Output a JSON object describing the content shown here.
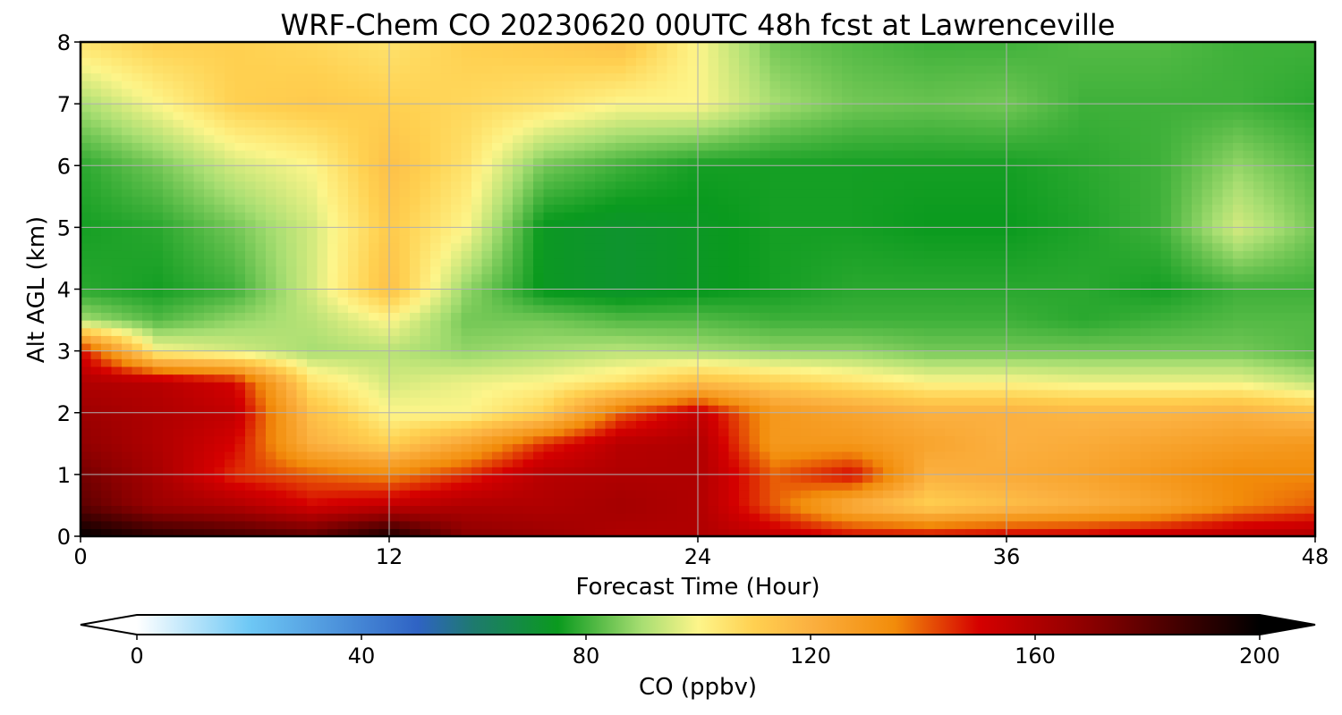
{
  "chart_data": {
    "type": "heatmap",
    "title": "WRF-Chem CO  20230620 00UTC 48h fcst at Lawrenceville",
    "xlabel": "Forecast Time (Hour)",
    "ylabel": "Alt AGL (km)",
    "xlim": [
      0,
      48
    ],
    "ylim": [
      0,
      8
    ],
    "x_ticks": [
      0,
      12,
      24,
      36,
      48
    ],
    "y_ticks": [
      0,
      1,
      2,
      3,
      4,
      5,
      6,
      7,
      8
    ],
    "grid": true,
    "x": [
      0,
      3,
      6,
      9,
      12,
      15,
      18,
      21,
      24,
      27,
      30,
      33,
      36,
      39,
      42,
      45,
      48
    ],
    "y": [
      0,
      0.5,
      1,
      1.5,
      2,
      2.5,
      3,
      3.5,
      4,
      5,
      6,
      7,
      8
    ],
    "z": [
      [
        200,
        190,
        185,
        180,
        195,
        170,
        165,
        160,
        160,
        155,
        150,
        150,
        152,
        152,
        155,
        158,
        160
      ],
      [
        180,
        165,
        160,
        150,
        155,
        160,
        160,
        163,
        160,
        140,
        120,
        110,
        115,
        120,
        125,
        135,
        140
      ],
      [
        175,
        162,
        145,
        140,
        135,
        145,
        158,
        160,
        160,
        140,
        150,
        120,
        122,
        125,
        130,
        135,
        135
      ],
      [
        168,
        160,
        150,
        120,
        110,
        125,
        145,
        158,
        160,
        130,
        130,
        125,
        120,
        122,
        125,
        128,
        130
      ],
      [
        165,
        160,
        155,
        115,
        100,
        100,
        110,
        140,
        155,
        130,
        125,
        120,
        120,
        118,
        118,
        120,
        115
      ],
      [
        160,
        158,
        150,
        105,
        95,
        98,
        100,
        105,
        115,
        110,
        105,
        100,
        100,
        98,
        98,
        98,
        92
      ],
      [
        150,
        100,
        95,
        90,
        92,
        88,
        90,
        92,
        90,
        88,
        88,
        85,
        85,
        85,
        85,
        85,
        82
      ],
      [
        90,
        82,
        88,
        92,
        100,
        85,
        85,
        82,
        82,
        80,
        80,
        80,
        80,
        78,
        80,
        82,
        82
      ],
      [
        78,
        76,
        80,
        95,
        115,
        88,
        74,
        72,
        74,
        76,
        78,
        78,
        78,
        78,
        76,
        80,
        80
      ],
      [
        76,
        78,
        85,
        95,
        112,
        100,
        74,
        72,
        74,
        76,
        76,
        75,
        75,
        77,
        80,
        95,
        85
      ],
      [
        78,
        85,
        95,
        100,
        115,
        105,
        85,
        80,
        76,
        76,
        76,
        76,
        76,
        78,
        80,
        88,
        82
      ],
      [
        90,
        100,
        110,
        112,
        110,
        108,
        105,
        100,
        100,
        90,
        85,
        84,
        85,
        80,
        80,
        80,
        78
      ],
      [
        105,
        110,
        110,
        108,
        105,
        110,
        112,
        115,
        100,
        85,
        82,
        80,
        80,
        82,
        82,
        80,
        80
      ]
    ],
    "colorbar": {
      "label": "CO  (ppbv)",
      "range": [
        0,
        200
      ],
      "ticks": [
        0,
        40,
        80,
        120,
        160,
        200
      ],
      "extend": "both",
      "colors": [
        [
          0,
          "#ffffff"
        ],
        [
          20,
          "#6ec8f5"
        ],
        [
          50,
          "#2f63c4"
        ],
        [
          60,
          "#1e7a6e"
        ],
        [
          75,
          "#0a9a1e"
        ],
        [
          90,
          "#a8de72"
        ],
        [
          100,
          "#fdf58a"
        ],
        [
          110,
          "#ffd050"
        ],
        [
          120,
          "#fbb040"
        ],
        [
          135,
          "#f28c0a"
        ],
        [
          150,
          "#d50000"
        ],
        [
          170,
          "#8a0000"
        ],
        [
          200,
          "#000000"
        ]
      ]
    }
  }
}
